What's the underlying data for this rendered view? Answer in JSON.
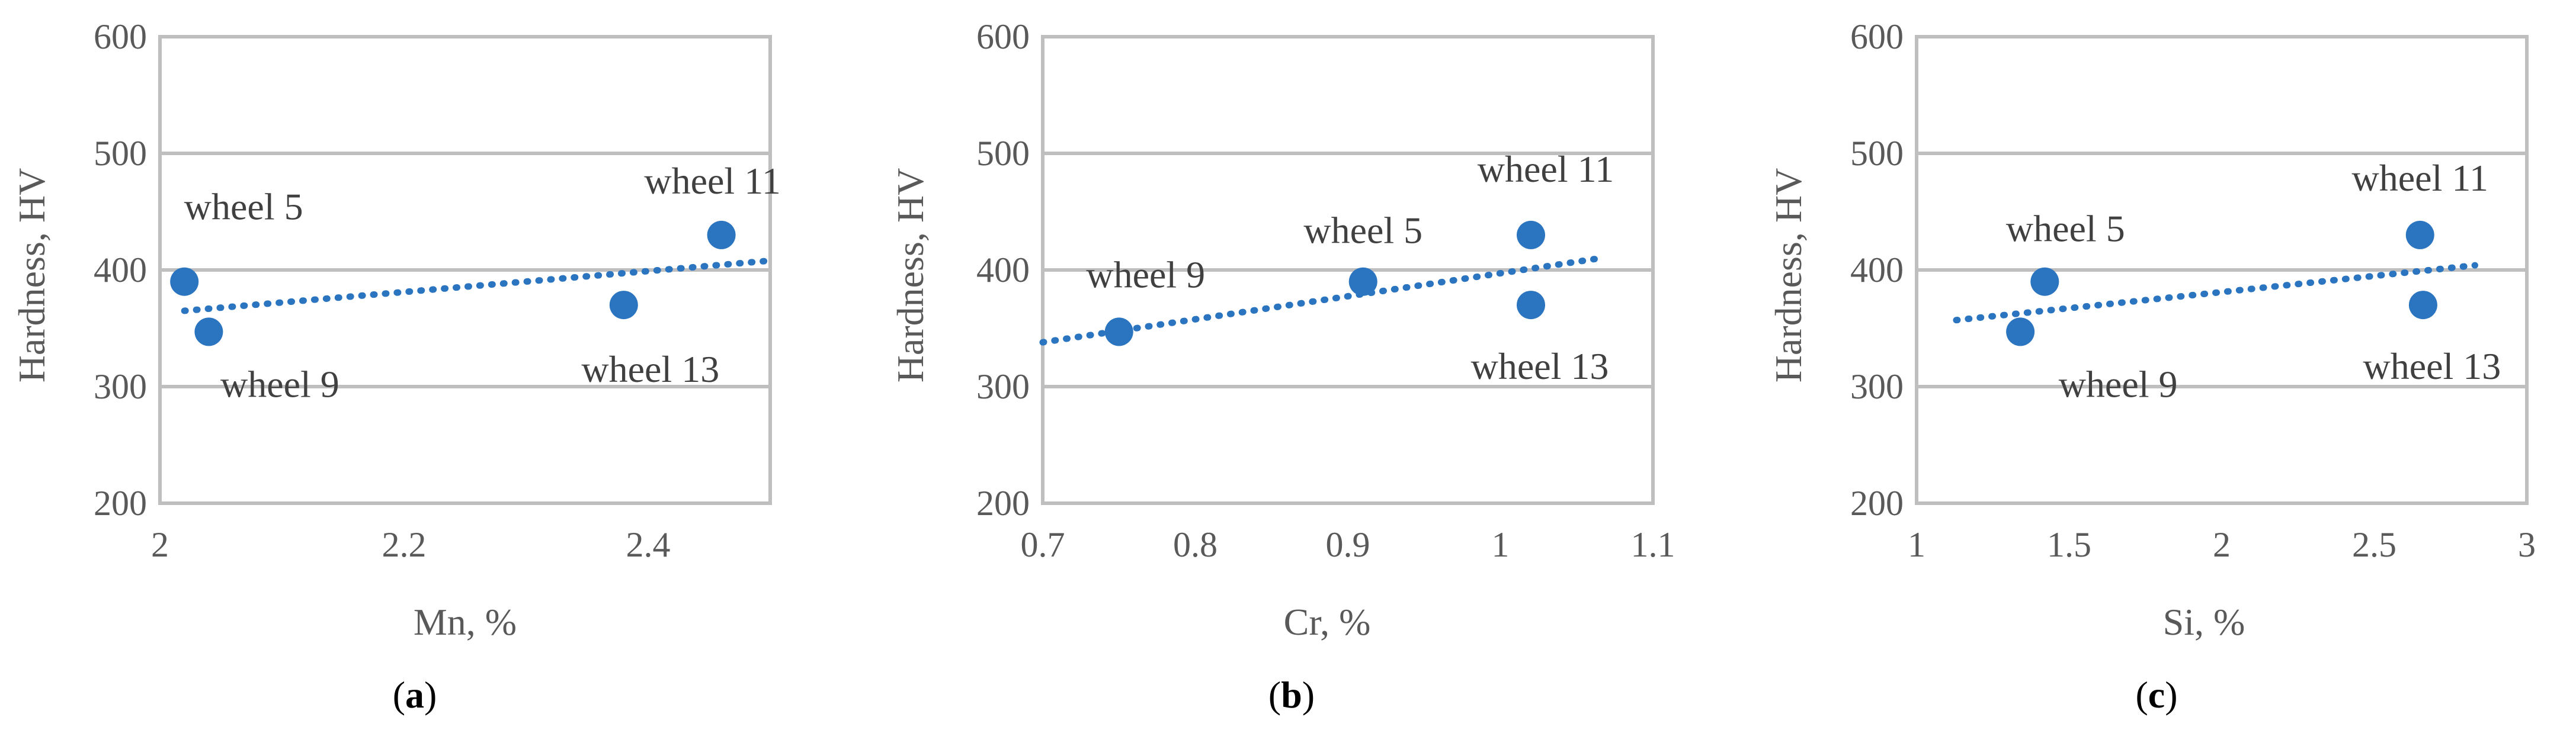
{
  "colors": {
    "marker": "#2b74c0",
    "trendline": "#2b74c0",
    "grid": "#bfbfbf",
    "text": "#595959"
  },
  "chart_data": [
    {
      "type": "scatter",
      "panel": "a",
      "xlabel": "Mn, %",
      "ylabel": "Hardness, HV",
      "xlim": [
        2,
        2.5
      ],
      "ylim": [
        200,
        600
      ],
      "xticks": [
        "2",
        "2.2",
        "2.4"
      ],
      "yticks": [
        "200",
        "300",
        "400",
        "500",
        "600"
      ],
      "grid": "horizontal",
      "trendline": {
        "style": "dotted",
        "x": [
          2.02,
          2.5
        ],
        "y": [
          365,
          408
        ]
      },
      "points": [
        {
          "x": 2.02,
          "y": 390,
          "label": "wheel 5"
        },
        {
          "x": 2.04,
          "y": 347,
          "label": "wheel 9"
        },
        {
          "x": 2.46,
          "y": 430,
          "label": "wheel 11"
        },
        {
          "x": 2.38,
          "y": 370,
          "label": "wheel 13"
        }
      ]
    },
    {
      "type": "scatter",
      "panel": "b",
      "xlabel": "Cr, %",
      "ylabel": "Hardness, HV",
      "xlim": [
        0.7,
        1.1
      ],
      "ylim": [
        200,
        600
      ],
      "xticks": [
        "0.7",
        "0.8",
        "0.9",
        "1",
        "1.1"
      ],
      "yticks": [
        "200",
        "300",
        "400",
        "500",
        "600"
      ],
      "grid": "horizontal",
      "trendline": {
        "style": "dotted",
        "x": [
          0.7,
          1.065
        ],
        "y": [
          338,
          410
        ]
      },
      "points": [
        {
          "x": 0.91,
          "y": 390,
          "label": "wheel 5"
        },
        {
          "x": 0.75,
          "y": 347,
          "label": "wheel 9"
        },
        {
          "x": 1.02,
          "y": 430,
          "label": "wheel 11"
        },
        {
          "x": 1.02,
          "y": 370,
          "label": "wheel 13"
        }
      ]
    },
    {
      "type": "scatter",
      "panel": "c",
      "xlabel": "Si, %",
      "ylabel": "Hardness, HV",
      "xlim": [
        1,
        3
      ],
      "ylim": [
        200,
        600
      ],
      "xticks": [
        "1",
        "1.5",
        "2",
        "2.5",
        "3"
      ],
      "yticks": [
        "200",
        "300",
        "400",
        "500",
        "600"
      ],
      "grid": "horizontal",
      "trendline": {
        "style": "dotted",
        "x": [
          1.13,
          2.83
        ],
        "y": [
          357,
          404
        ]
      },
      "points": [
        {
          "x": 1.42,
          "y": 390,
          "label": "wheel 5"
        },
        {
          "x": 1.34,
          "y": 347,
          "label": "wheel 9"
        },
        {
          "x": 2.65,
          "y": 430,
          "label": "wheel 11"
        },
        {
          "x": 2.66,
          "y": 370,
          "label": "wheel 13"
        }
      ]
    }
  ]
}
